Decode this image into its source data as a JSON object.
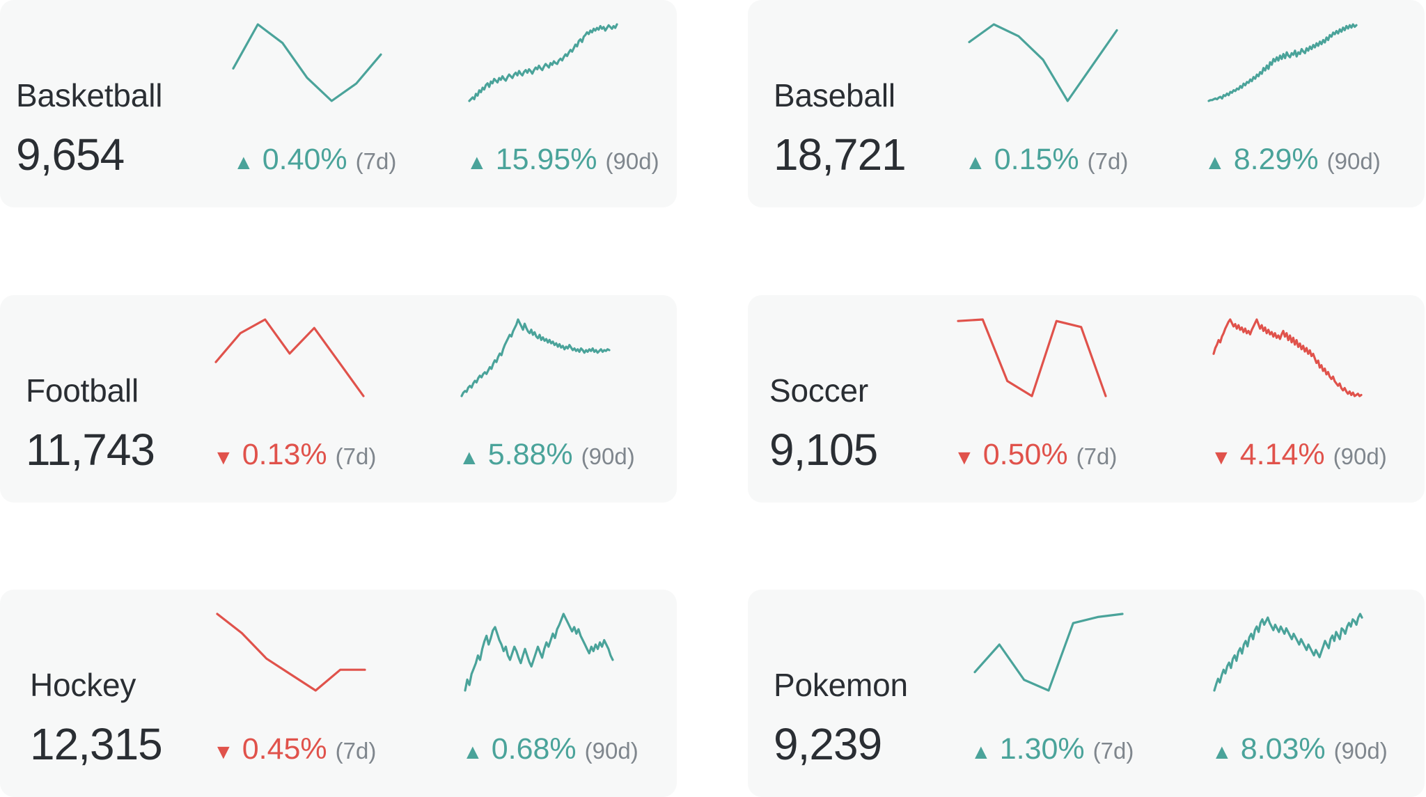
{
  "colors": {
    "up": "#4aa39a",
    "down": "#e0524b",
    "card": "#f7f8f8",
    "text": "#2a2e33",
    "muted": "#7f868d"
  },
  "icons": {
    "up": "triangle-up-icon",
    "down": "triangle-down-icon"
  },
  "arrows": {
    "up": "▲",
    "down": "▼"
  },
  "chart_data": [
    {
      "type": "line",
      "name": "Basketball",
      "value": "9,654",
      "d7": {
        "change": "0.40%",
        "period": "(7d)",
        "direction": "up",
        "values": [
          60,
          98,
          82,
          52,
          32,
          47,
          72
        ]
      },
      "d90": {
        "change": "15.95%",
        "period": "(90d)",
        "direction": "up",
        "values": [
          10,
          12,
          14,
          12,
          18,
          16,
          22,
          20,
          25,
          23,
          28,
          30,
          26,
          32,
          30,
          35,
          33,
          31,
          36,
          34,
          38,
          35,
          33,
          37,
          40,
          38,
          36,
          40,
          42,
          39,
          44,
          41,
          39,
          43,
          45,
          42,
          46,
          44,
          41,
          45,
          48,
          46,
          50,
          47,
          45,
          49,
          52,
          50,
          48,
          53,
          51,
          55,
          53,
          52,
          56,
          58,
          56,
          60,
          63,
          61,
          65,
          68,
          66,
          70,
          74,
          72,
          78,
          80,
          77,
          83,
          85,
          88,
          86,
          90,
          88,
          92,
          90,
          93,
          91,
          95,
          92,
          94,
          90,
          93,
          96,
          94,
          92,
          95,
          93,
          97
        ]
      }
    },
    {
      "type": "line",
      "name": "Baseball",
      "value": "18,721",
      "d7": {
        "change": "0.15%",
        "period": "(7d)",
        "direction": "up",
        "values": [
          80,
          95,
          85,
          65,
          30,
          60,
          90
        ]
      },
      "d90": {
        "change": "8.29%",
        "period": "(90d)",
        "direction": "up",
        "values": [
          5,
          6,
          6,
          7,
          8,
          7,
          9,
          10,
          8,
          12,
          11,
          14,
          12,
          16,
          15,
          18,
          17,
          20,
          19,
          23,
          21,
          26,
          24,
          28,
          27,
          31,
          29,
          34,
          32,
          37,
          35,
          40,
          38,
          45,
          42,
          48,
          44,
          52,
          49,
          56,
          53,
          58,
          54,
          60,
          56,
          62,
          57,
          64,
          60,
          58,
          63,
          61,
          66,
          59,
          64,
          62,
          68,
          65,
          63,
          69,
          66,
          71,
          68,
          73,
          70,
          75,
          72,
          77,
          74,
          79,
          76,
          82,
          79,
          85,
          83,
          88,
          86,
          90,
          87,
          92,
          89,
          94,
          91,
          96,
          93,
          97,
          94,
          98,
          95,
          97
        ]
      }
    },
    {
      "type": "line",
      "name": "Football",
      "value": "11,743",
      "d7": {
        "change": "0.13%",
        "period": "(7d)",
        "direction": "down",
        "values": [
          75,
          92,
          100,
          80,
          95,
          75,
          55
        ]
      },
      "d90": {
        "change": "5.88%",
        "period": "(90d)",
        "direction": "up",
        "values": [
          10,
          14,
          16,
          15,
          20,
          22,
          20,
          25,
          28,
          26,
          31,
          34,
          32,
          36,
          38,
          36,
          40,
          44,
          42,
          48,
          52,
          50,
          56,
          60,
          58,
          65,
          70,
          74,
          78,
          82,
          80,
          86,
          90,
          94,
          100,
          96,
          92,
          88,
          95,
          90,
          86,
          84,
          88,
          82,
          85,
          80,
          78,
          82,
          76,
          79,
          75,
          77,
          73,
          76,
          72,
          74,
          70,
          72,
          68,
          71,
          67,
          69,
          65,
          68,
          66,
          70,
          67,
          64,
          66,
          63,
          65,
          62,
          66,
          64,
          61,
          64,
          62,
          65,
          63,
          66,
          62,
          64,
          61,
          63,
          65,
          62,
          64,
          63,
          65,
          64
        ]
      }
    },
    {
      "type": "line",
      "name": "Soccer",
      "value": "9,105",
      "d7": {
        "change": "0.50%",
        "period": "(7d)",
        "direction": "down",
        "values": [
          100,
          101,
          60,
          50,
          100,
          96,
          50
        ]
      },
      "d90": {
        "change": "4.14%",
        "period": "(90d)",
        "direction": "down",
        "values": [
          70,
          75,
          78,
          82,
          80,
          85,
          88,
          92,
          95,
          98,
          100,
          97,
          94,
          96,
          92,
          95,
          91,
          93,
          89,
          92,
          88,
          90,
          87,
          91,
          94,
          97,
          100,
          96,
          92,
          95,
          90,
          93,
          88,
          91,
          87,
          89,
          85,
          88,
          84,
          86,
          83,
          87,
          90,
          85,
          88,
          82,
          86,
          80,
          84,
          78,
          82,
          76,
          79,
          74,
          77,
          72,
          75,
          70,
          73,
          68,
          70,
          66,
          62,
          64,
          58,
          60,
          55,
          57,
          52,
          54,
          50,
          48,
          50,
          46,
          44,
          42,
          44,
          40,
          38,
          40,
          37,
          35,
          37,
          34,
          36,
          33,
          34,
          35,
          33,
          34
        ]
      }
    },
    {
      "type": "line",
      "name": "Hockey",
      "value": "12,315",
      "d7": {
        "change": "0.45%",
        "period": "(7d)",
        "direction": "down",
        "values": [
          90,
          78,
          62,
          52,
          42,
          55,
          55
        ]
      },
      "d90": {
        "change": "0.68%",
        "period": "(90d)",
        "direction": "up",
        "values": [
          30,
          40,
          35,
          45,
          50,
          55,
          62,
          58,
          68,
          75,
          80,
          72,
          78,
          85,
          88,
          82,
          76,
          72,
          66,
          70,
          62,
          58,
          64,
          70,
          66,
          60,
          55,
          62,
          68,
          62,
          56,
          52,
          58,
          64,
          70,
          65,
          60,
          68,
          74,
          70,
          76,
          82,
          78,
          86,
          90,
          95,
          100,
          96,
          92,
          88,
          84,
          88,
          82,
          86,
          80,
          76,
          72,
          68,
          64,
          70,
          66,
          72,
          68,
          74,
          70,
          76,
          72,
          68,
          62,
          58
        ]
      }
    },
    {
      "type": "line",
      "name": "Pokemon",
      "value": "9,239",
      "d7": {
        "change": "1.30%",
        "period": "(7d)",
        "direction": "up",
        "values": [
          60,
          78,
          55,
          48,
          92,
          96,
          98
        ]
      },
      "d90": {
        "change": "8.03%",
        "period": "(90d)",
        "direction": "up",
        "values": [
          15,
          22,
          28,
          24,
          32,
          38,
          34,
          42,
          46,
          40,
          50,
          54,
          48,
          58,
          62,
          56,
          66,
          70,
          64,
          74,
          78,
          72,
          82,
          86,
          80,
          90,
          94,
          88,
          92,
          96,
          90,
          86,
          82,
          88,
          84,
          80,
          86,
          82,
          78,
          84,
          80,
          76,
          72,
          78,
          74,
          70,
          66,
          72,
          68,
          64,
          60,
          66,
          62,
          58,
          54,
          60,
          56,
          52,
          58,
          64,
          70,
          66,
          62,
          72,
          76,
          70,
          80,
          76,
          72,
          84,
          82,
          78,
          86,
          90,
          86,
          94,
          92,
          88,
          96,
          100,
          96
        ]
      }
    }
  ]
}
